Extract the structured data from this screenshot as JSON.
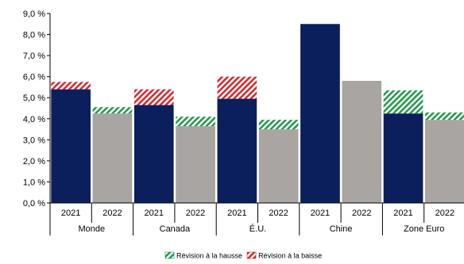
{
  "chart_data": {
    "type": "bar",
    "stacked": true,
    "groups": [
      {
        "label": "Monde",
        "categories": [
          "2021",
          "2022"
        ]
      },
      {
        "label": "Canada",
        "categories": [
          "2021",
          "2022"
        ]
      },
      {
        "label": "É.U.",
        "categories": [
          "2021",
          "2022"
        ]
      },
      {
        "label": "Chine",
        "categories": [
          "2021",
          "2022"
        ]
      },
      {
        "label": "Zone Euro",
        "categories": [
          "2021",
          "2022"
        ]
      }
    ],
    "bars": [
      {
        "group": "Monde",
        "year": "2021",
        "base": 5.4,
        "revision": 0.35,
        "revision_type": "baisse"
      },
      {
        "group": "Monde",
        "year": "2022",
        "base": 4.25,
        "revision": 0.3,
        "revision_type": "hausse"
      },
      {
        "group": "Canada",
        "year": "2021",
        "base": 4.65,
        "revision": 0.75,
        "revision_type": "baisse"
      },
      {
        "group": "Canada",
        "year": "2022",
        "base": 3.65,
        "revision": 0.45,
        "revision_type": "hausse"
      },
      {
        "group": "É.U.",
        "year": "2021",
        "base": 4.95,
        "revision": 1.05,
        "revision_type": "baisse"
      },
      {
        "group": "É.U.",
        "year": "2022",
        "base": 3.5,
        "revision": 0.45,
        "revision_type": "hausse"
      },
      {
        "group": "Chine",
        "year": "2021",
        "base": 8.5,
        "revision": 0,
        "revision_type": "none"
      },
      {
        "group": "Chine",
        "year": "2022",
        "base": 5.8,
        "revision": 0,
        "revision_type": "none"
      },
      {
        "group": "Zone Euro",
        "year": "2021",
        "base": 4.25,
        "revision": 1.1,
        "revision_type": "hausse"
      },
      {
        "group": "Zone Euro",
        "year": "2022",
        "base": 3.95,
        "revision": 0.35,
        "revision_type": "hausse"
      }
    ],
    "ylim": [
      0,
      9
    ],
    "yticks": [
      "0,0 %",
      "1,0 %",
      "2,0 %",
      "3,0 %",
      "4,0 %",
      "5,0 %",
      "6,0 %",
      "7,0 %",
      "8,0 %",
      "9,0 %"
    ],
    "legend": [
      {
        "label": "Révision à la hausse",
        "type": "hausse"
      },
      {
        "label": "Révision à la baisse",
        "type": "baisse"
      }
    ],
    "legend_position": "bottom",
    "colors": {
      "base_2021": "#0b1f5c",
      "base_2022": "#a9a5a2",
      "hausse": "#1f9a4a",
      "baisse": "#d9262b"
    }
  }
}
